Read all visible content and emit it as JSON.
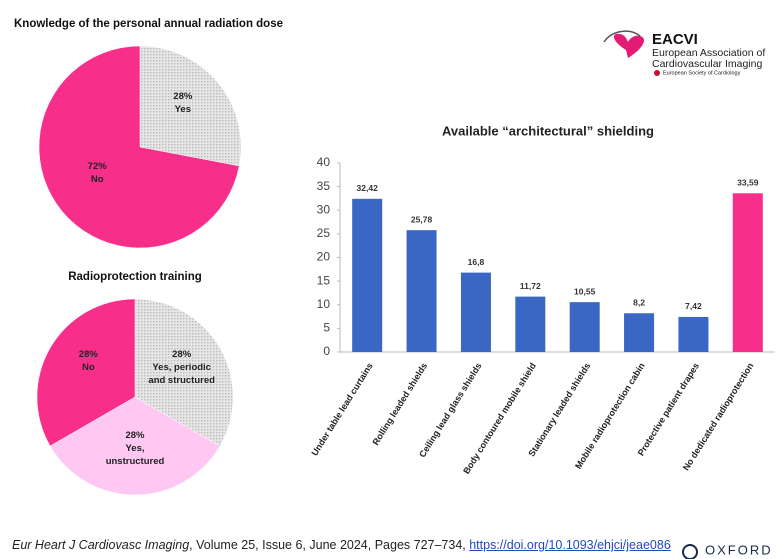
{
  "chart_data": [
    {
      "type": "pie",
      "title": "Knowledge of the personal annual radiation dose",
      "categories": [
        "Yes",
        "No"
      ],
      "values": [
        28,
        72
      ],
      "value_labels": [
        "28%",
        "72%"
      ],
      "colors": [
        "dots",
        "#f72f8b"
      ]
    },
    {
      "type": "pie",
      "title": "Radioprotection training",
      "categories": [
        "Yes, periodic and structured",
        "Yes, unstructured",
        "No"
      ],
      "values": [
        28,
        28,
        28
      ],
      "value_labels": [
        "28%",
        "28%",
        "28%"
      ],
      "colors": [
        "dots",
        "#ffc8f3",
        "#f72f8b"
      ]
    },
    {
      "type": "bar",
      "title": "Available “architectural” shielding",
      "categories": [
        "Under table lead curtains",
        "Rolling leaded shields",
        "Ceiling lead glass shields",
        "Body contoured mobile shield",
        "Stationary leaded shields",
        "Mobile radioprotection cabin",
        "Protective patient drapes",
        "No dedicated radioprotection"
      ],
      "values": [
        32.42,
        25.78,
        16.8,
        11.72,
        10.55,
        8.2,
        7.42,
        33.59
      ],
      "value_labels": [
        "32,42",
        "25,78",
        "16,8",
        "11,72",
        "10,55",
        "8,2",
        "7,42",
        "33,59"
      ],
      "colors": [
        "#3a66c4",
        "#3a66c4",
        "#3a66c4",
        "#3a66c4",
        "#3a66c4",
        "#3a66c4",
        "#3a66c4",
        "#f72f8b"
      ],
      "ylim": [
        0,
        40
      ],
      "yticks": [
        0,
        5,
        10,
        15,
        20,
        25,
        30,
        35,
        40
      ]
    }
  ],
  "logo": {
    "name": "EACVI",
    "line1": "European Association of",
    "line2": "Cardiovascular Imaging",
    "society": "European Society of Cardiology"
  },
  "citation": {
    "journal": "Eur Heart J Cardiovasc Imaging",
    "details": ", Volume 25, Issue 6, June 2024, Pages 727–734, ",
    "doi": "https://doi.org/10.1093/ehjci/jeae086"
  },
  "publisher": "OXFORD"
}
